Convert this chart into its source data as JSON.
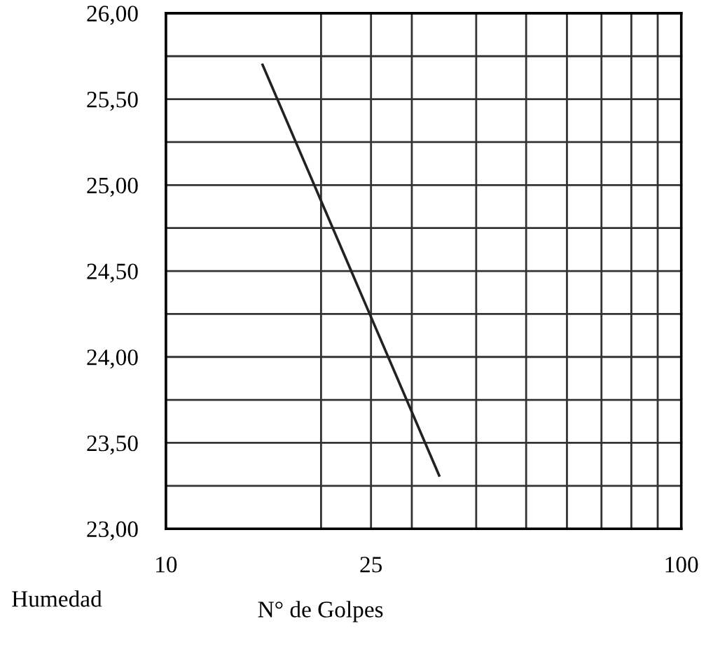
{
  "chart_data": {
    "type": "line",
    "xlabel": "N° de Golpes",
    "ylabel": "Humedad",
    "log": "x",
    "x": [
      15.4,
      33.9
    ],
    "series": [
      {
        "color": "#222222",
        "values": [
          25.7,
          23.31
        ]
      }
    ],
    "xlim": [
      10,
      100
    ],
    "xticks": [
      {
        "value": 10,
        "label": "10"
      },
      {
        "value": 20,
        "label": null
      },
      {
        "value": 25,
        "label": "25"
      },
      {
        "value": 30,
        "label": null
      },
      {
        "value": 40,
        "label": null
      },
      {
        "value": 50,
        "label": null
      },
      {
        "value": 60,
        "label": null
      },
      {
        "value": 70,
        "label": null
      },
      {
        "value": 80,
        "label": null
      },
      {
        "value": 90,
        "label": null
      },
      {
        "value": 100,
        "label": "100"
      }
    ],
    "ylim": [
      23,
      26
    ],
    "yticks": [
      {
        "value": 23,
        "label": "23,00"
      },
      {
        "value": 23.25,
        "label": null
      },
      {
        "value": 23.5,
        "label": "23,50"
      },
      {
        "value": 23.75,
        "label": null
      },
      {
        "value": 24,
        "label": "24,00"
      },
      {
        "value": 24.25,
        "label": null
      },
      {
        "value": 24.5,
        "label": "24,50"
      },
      {
        "value": 24.75,
        "label": null
      },
      {
        "value": 25,
        "label": "25,00"
      },
      {
        "value": 25.25,
        "label": null
      },
      {
        "value": 25.5,
        "label": "25,50"
      },
      {
        "value": 25.75,
        "label": null
      },
      {
        "value": 26,
        "label": "26,00"
      }
    ],
    "grid": true,
    "marker": "none",
    "line_style": "solid"
  }
}
